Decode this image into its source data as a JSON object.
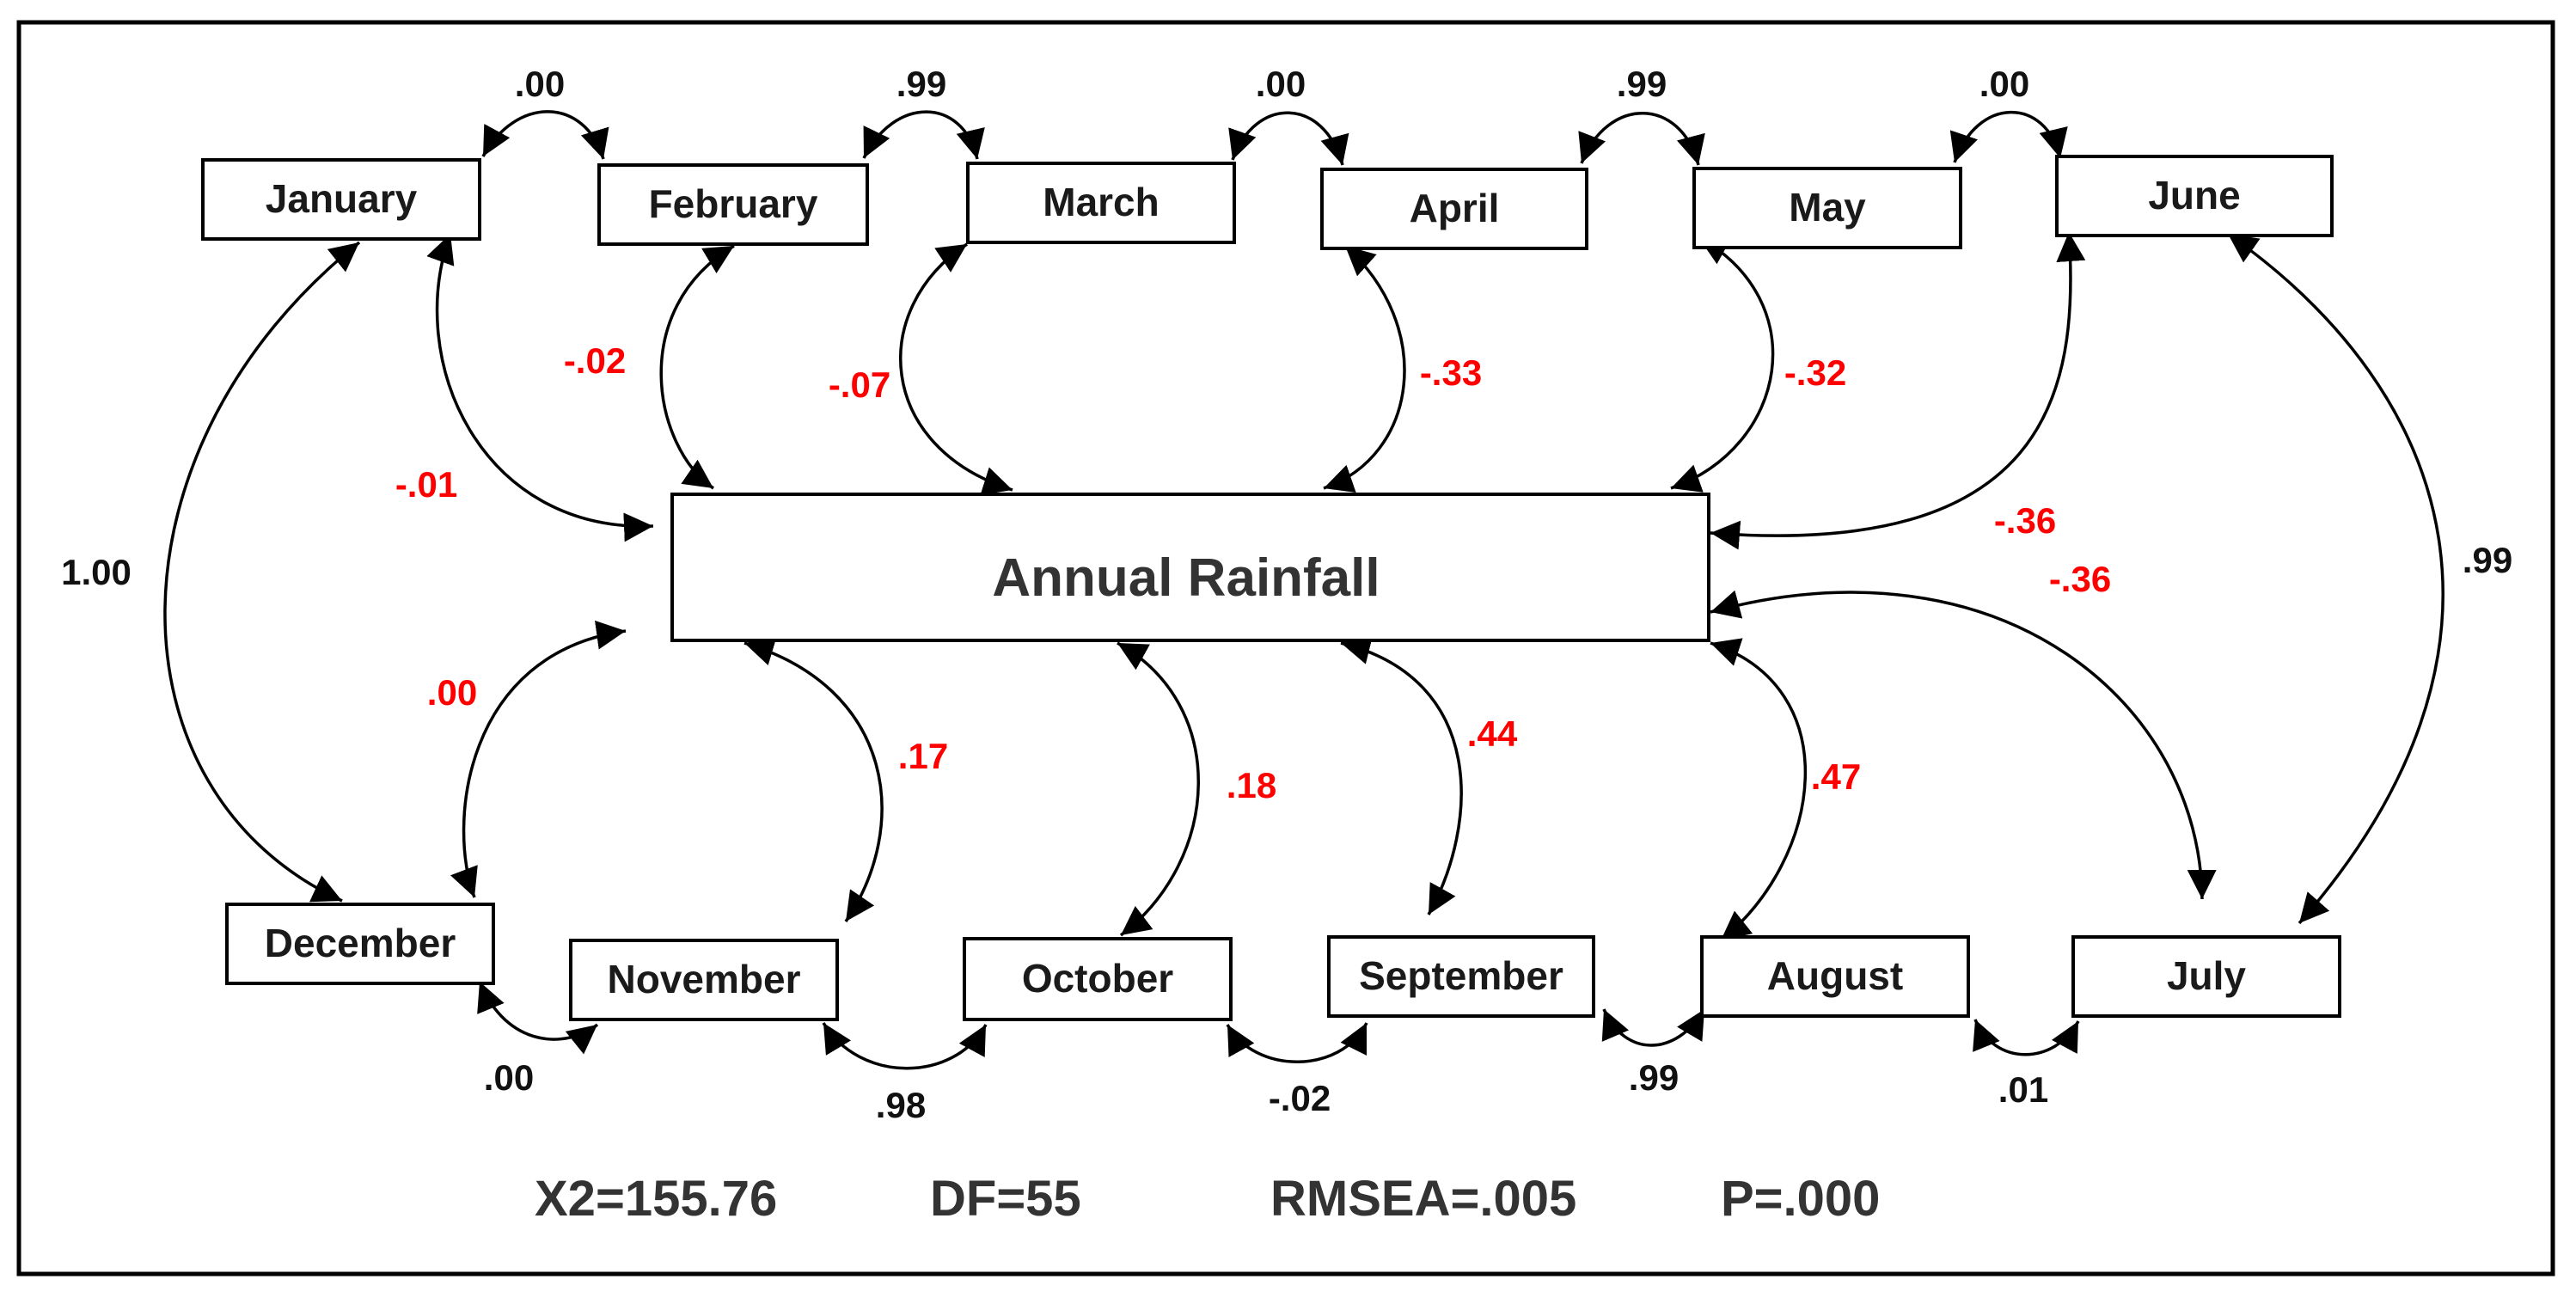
{
  "center_label": "Annual Rainfall",
  "months": {
    "january": "January",
    "february": "February",
    "march": "March",
    "april": "April",
    "may": "May",
    "june": "June",
    "july": "July",
    "august": "August",
    "september": "September",
    "october": "October",
    "november": "November",
    "december": "December"
  },
  "adjacent_correlations": {
    "jan_feb": ".00",
    "feb_mar": ".99",
    "mar_apr": ".00",
    "apr_may": ".99",
    "may_jun": ".00",
    "jul_aug": ".01",
    "aug_sep": ".99",
    "sep_oct": "-.02",
    "oct_nov": ".98",
    "nov_dec": ".00",
    "jan_dec": "1.00",
    "jun_jul": ".99"
  },
  "rainfall_correlations": {
    "january": "-.01",
    "february": "-.02",
    "march": "-.07",
    "april": "-.33",
    "may": "-.32",
    "june": "-.36",
    "july": "-.36",
    "august": ".47",
    "september": ".44",
    "october": ".18",
    "november": ".17",
    "december": ".00"
  },
  "fit_stats": {
    "chi2": "X2=155.76",
    "df": "DF=55",
    "rmsea": "RMSEA=.005",
    "p": "P=.000"
  },
  "colors": {
    "negative_or_rainfall_link": "#ff0000",
    "text": "#1a1a1a",
    "stroke": "#000000"
  }
}
